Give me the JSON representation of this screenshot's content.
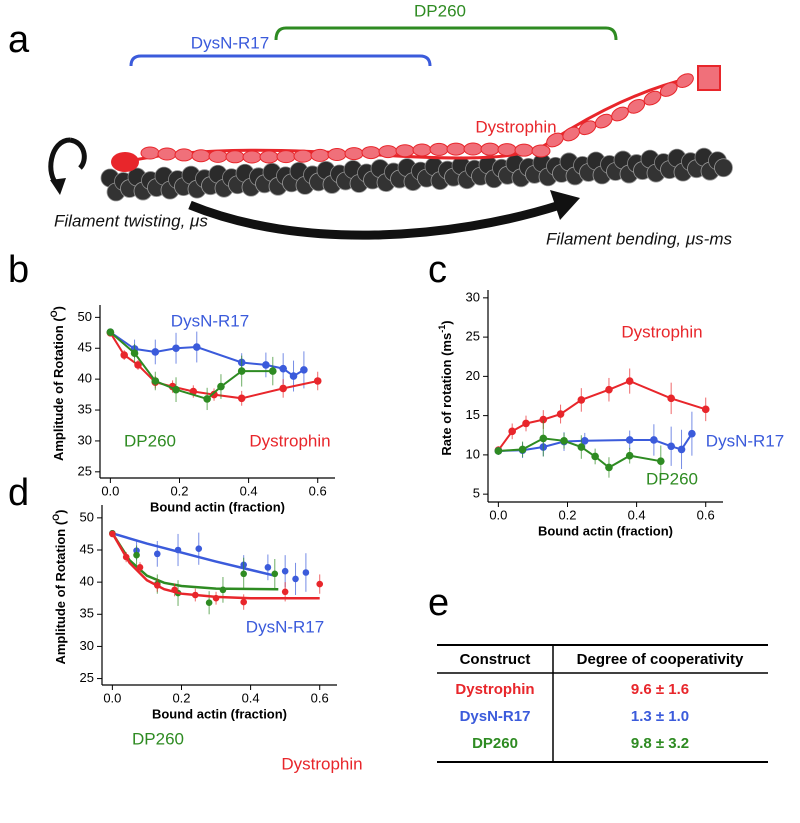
{
  "panel_labels": [
    "a",
    "b",
    "c",
    "d",
    "e"
  ],
  "diagram": {
    "brackets": [
      "DysN-R17",
      "DP260"
    ],
    "protein": "Dystrophin",
    "twisting": "Filament twisting, μs",
    "bending": "Filament bending, μs-ms"
  },
  "chart_data": [
    {
      "type": "line",
      "ylabel": [
        "Amplitude of Rotation (",
        "O",
        ")"
      ],
      "xlabel": "Bound actin (fraction)",
      "xlim": [
        -0.03,
        0.65
      ],
      "ylim": [
        24,
        52
      ],
      "xticks": [
        {
          "value": 0,
          "label": "0.0"
        },
        0.2,
        0.4,
        0.6
      ],
      "yticks": [
        25,
        30,
        35,
        40,
        45,
        50
      ],
      "series": [
        {
          "name": "DysN-R17",
          "color": "#3b5bdb",
          "x": [
            0,
            0.07,
            0.13,
            0.19,
            0.25,
            0.38,
            0.45,
            0.5,
            0.53,
            0.56
          ],
          "values": [
            47.6,
            44.9,
            44.4,
            45.0,
            45.2,
            42.7,
            42.3,
            41.7,
            40.5,
            41.5
          ],
          "errors": [
            0.5,
            1.5,
            2,
            2.5,
            2.5,
            1.5,
            2,
            2.5,
            2.5,
            3
          ]
        },
        {
          "name": "Dystrophin",
          "color": "#e8262b",
          "x": [
            0,
            0.04,
            0.08,
            0.13,
            0.18,
            0.24,
            0.3,
            0.38,
            0.5,
            0.6
          ],
          "values": [
            47.5,
            43.9,
            42.3,
            39.5,
            38.8,
            38.0,
            37.5,
            36.9,
            38.5,
            39.7
          ],
          "errors": [
            0.5,
            0.8,
            0.8,
            1,
            1,
            1,
            1,
            1.2,
            1.5,
            1.5
          ]
        },
        {
          "name": "DP260",
          "color": "#2e8b22",
          "x": [
            0,
            0.07,
            0.13,
            0.19,
            0.28,
            0.32,
            0.38,
            0.47
          ],
          "values": [
            47.6,
            44.2,
            39.7,
            38.3,
            36.8,
            38.8,
            41.3,
            41.3
          ],
          "errors": [
            0.5,
            1.5,
            1.5,
            2,
            1.8,
            2,
            2.5,
            2.3
          ]
        }
      ]
    },
    {
      "type": "line",
      "ylabel": [
        "Rate of rotation (ms",
        "-1",
        ")"
      ],
      "xlabel": "Bound actin (fraction)",
      "xlim": [
        -0.03,
        0.65
      ],
      "ylim": [
        4,
        31
      ],
      "xticks": [
        {
          "value": 0,
          "label": "0.0"
        },
        0.2,
        0.4,
        0.6
      ],
      "yticks": [
        5,
        10,
        15,
        20,
        25,
        30
      ],
      "series": [
        {
          "name": "Dystrophin",
          "color": "#e8262b",
          "x": [
            0,
            0.04,
            0.08,
            0.13,
            0.18,
            0.24,
            0.32,
            0.38,
            0.5,
            0.6
          ],
          "values": [
            10.6,
            13.0,
            14.0,
            14.5,
            15.2,
            17.0,
            18.3,
            19.4,
            17.2,
            15.8
          ],
          "errors": [
            0.5,
            1,
            1,
            1.2,
            1.2,
            1.5,
            1.5,
            1.6,
            2,
            1.5
          ]
        },
        {
          "name": "DysN-R17",
          "color": "#3b5bdb",
          "x": [
            0,
            0.07,
            0.13,
            0.19,
            0.25,
            0.38,
            0.45,
            0.5,
            0.53,
            0.56
          ],
          "values": [
            10.5,
            10.6,
            11.0,
            11.7,
            11.8,
            11.9,
            11.9,
            11.1,
            10.7,
            12.7
          ],
          "errors": [
            0.5,
            1,
            1.2,
            1.2,
            1,
            1.2,
            2,
            2.5,
            2.5,
            2.8
          ]
        },
        {
          "name": "DP260",
          "color": "#2e8b22",
          "x": [
            0,
            0.07,
            0.13,
            0.19,
            0.24,
            0.28,
            0.32,
            0.38,
            0.47
          ],
          "values": [
            10.5,
            10.7,
            12.1,
            11.8,
            11.0,
            9.8,
            8.4,
            9.9,
            9.2
          ],
          "errors": [
            0.5,
            1,
            2.3,
            1,
            1.5,
            1,
            1.3,
            1,
            2
          ]
        }
      ]
    },
    {
      "type": "scatter",
      "ylabel": [
        "Amplitude of Rotation (",
        "O",
        ")"
      ],
      "xlabel": "Bound actin (fraction)",
      "xlim": [
        -0.03,
        0.65
      ],
      "ylim": [
        24,
        52
      ],
      "xticks": [
        {
          "value": 0,
          "label": "0.0"
        },
        0.2,
        0.4,
        0.6
      ],
      "yticks": [
        25,
        30,
        35,
        40,
        45,
        50
      ],
      "series": [
        {
          "name": "DysN-R17",
          "color": "#3b5bdb",
          "x": [
            0,
            0.07,
            0.13,
            0.19,
            0.25,
            0.38,
            0.45,
            0.5,
            0.53,
            0.56
          ],
          "values": [
            47.6,
            44.9,
            44.4,
            45.0,
            45.2,
            42.7,
            42.3,
            41.7,
            40.5,
            41.5
          ],
          "errors": [
            0.5,
            1.5,
            2,
            2.5,
            2.5,
            1.5,
            2,
            2.5,
            2.5,
            3
          ],
          "fit": {
            "x": [
              0,
              0.1,
              0.2,
              0.3,
              0.4,
              0.47
            ],
            "values": [
              47.6,
              46.0,
              44.6,
              43.2,
              41.9,
              41.0
            ]
          }
        },
        {
          "name": "DP260",
          "color": "#2e8b22",
          "x": [
            0,
            0.07,
            0.13,
            0.19,
            0.28,
            0.32,
            0.38,
            0.47
          ],
          "values": [
            47.6,
            44.2,
            39.7,
            38.3,
            36.8,
            38.8,
            41.3,
            41.3
          ],
          "errors": [
            0.5,
            1.5,
            1.5,
            2,
            1.8,
            2,
            2.5,
            2.3
          ],
          "fit": {
            "x": [
              0,
              0.05,
              0.1,
              0.15,
              0.2,
              0.3,
              0.48
            ],
            "values": [
              47.6,
              43.4,
              41.0,
              39.9,
              39.4,
              39.0,
              38.9
            ]
          }
        },
        {
          "name": "Dystrophin",
          "color": "#e8262b",
          "x": [
            0,
            0.04,
            0.08,
            0.13,
            0.18,
            0.24,
            0.3,
            0.38,
            0.5,
            0.6
          ],
          "values": [
            47.5,
            43.9,
            42.3,
            39.5,
            38.8,
            38.0,
            37.5,
            36.9,
            38.5,
            39.7
          ],
          "errors": [
            0.5,
            0.8,
            0.8,
            1,
            1,
            1,
            1,
            1.2,
            1.5,
            1.5
          ],
          "fit": {
            "x": [
              0,
              0.05,
              0.1,
              0.15,
              0.2,
              0.3,
              0.4,
              0.6
            ],
            "values": [
              47.6,
              43.0,
              40.3,
              38.9,
              38.2,
              37.7,
              37.5,
              37.5
            ]
          }
        }
      ]
    }
  ],
  "table": {
    "header": [
      "Construct",
      "Degree of cooperativity"
    ],
    "rows": [
      [
        "Dystrophin",
        "9.6 ± 1.6"
      ],
      [
        "DysN-R17",
        "1.3 ± 1.0"
      ],
      [
        "DP260",
        "9.8 ± 3.2"
      ]
    ],
    "colors": [
      "#e8262b",
      "#3b5bdb",
      "#2e8b22"
    ]
  }
}
